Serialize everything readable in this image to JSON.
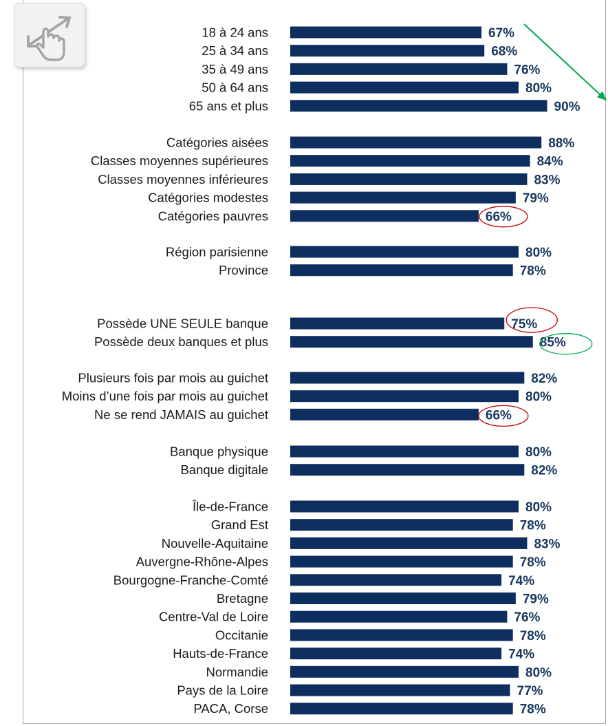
{
  "chart_data": {
    "type": "bar",
    "orientation": "horizontal",
    "title": "",
    "xlabel": "",
    "ylabel": "",
    "xlim": [
      0,
      100
    ],
    "grid": false,
    "legend": "none",
    "value_suffix": "%",
    "bar_color": "#0d2e5e",
    "label_color": "#17375e",
    "groups": [
      {
        "name": "age",
        "categories": [
          "18 à 24 ans",
          "25 à 34 ans",
          "35 à 49 ans",
          "50 à 64 ans",
          "65 ans et plus"
        ],
        "values": [
          67,
          68,
          76,
          80,
          90
        ]
      },
      {
        "name": "categories",
        "categories": [
          "Catégories aisées",
          "Classes moyennes supérieures",
          "Classes moyennes inférieures",
          "Catégories modestes",
          "Catégories pauvres"
        ],
        "values": [
          88,
          84,
          83,
          79,
          66
        ]
      },
      {
        "name": "zone",
        "categories": [
          "Région parisienne",
          "Province"
        ],
        "values": [
          80,
          78
        ]
      },
      {
        "name": "banques",
        "categories": [
          "Possède UNE SEULE banque",
          "Possède deux banques et plus"
        ],
        "values": [
          75,
          85
        ]
      },
      {
        "name": "guichet",
        "categories": [
          "Plusieurs fois par mois  au guichet",
          "Moins d’une fois par mois au guichet",
          "Ne se rend JAMAIS au guichet"
        ],
        "values": [
          82,
          80,
          66
        ]
      },
      {
        "name": "type-banque",
        "categories": [
          "Banque physique",
          "Banque digitale"
        ],
        "values": [
          80,
          82
        ]
      },
      {
        "name": "regions",
        "categories": [
          "Île-de-France",
          "Grand Est",
          "Nouvelle-Aquitaine",
          "Auvergne-Rhône-Alpes",
          "Bourgogne-Franche-Comté",
          "Bretagne",
          "Centre-Val de Loire",
          "Occitanie",
          "Hauts-de-France",
          "Normandie",
          "Pays de la Loire",
          "PACA, Corse"
        ],
        "values": [
          80,
          78,
          83,
          78,
          74,
          79,
          76,
          78,
          74,
          80,
          77,
          78
        ]
      }
    ],
    "annotations": {
      "trend_arrow": {
        "color": "#00a651",
        "from_value": "67%",
        "to_value": "90%"
      },
      "highlights": [
        {
          "value": "66%",
          "category": "Catégories pauvres",
          "color": "#c00000"
        },
        {
          "value": "75%",
          "category": "Possède UNE SEULE banque",
          "color": "#c00000"
        },
        {
          "value": "85%",
          "category": "Possède deux banques et plus",
          "color": "#00a651"
        },
        {
          "value": "66%",
          "category": "Ne se rend JAMAIS au guichet",
          "color": "#c00000"
        }
      ]
    }
  },
  "icon": {
    "name": "touch-gesture-icon",
    "color": "#a6a6a6"
  }
}
